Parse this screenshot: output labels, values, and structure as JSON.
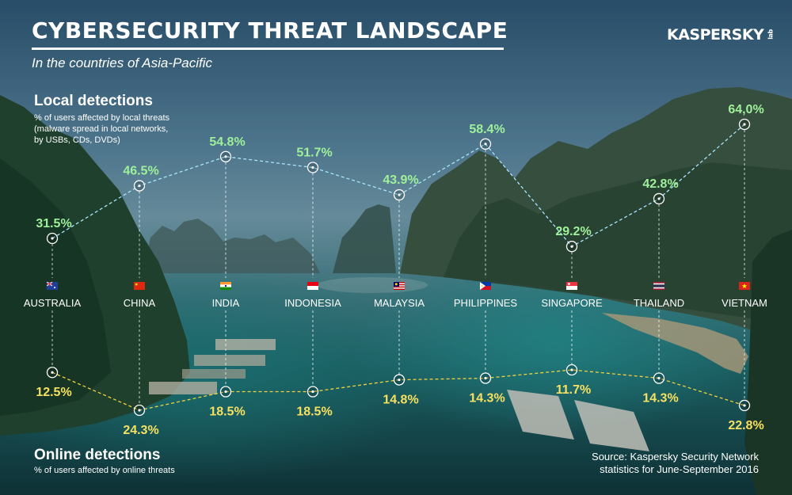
{
  "header": {
    "title": "CYBERSECURITY THREAT LANDSCAPE",
    "subtitle": "In the countries of Asia-Pacific",
    "logo_text": "KASPERSKY",
    "logo_suffix": "lab"
  },
  "local_section": {
    "heading": "Local detections",
    "note_lines": [
      "% of users affected by local threats",
      "(malware spread in local networks,",
      "by USBs, CDs, DVDs)"
    ]
  },
  "online_section": {
    "heading": "Online detections",
    "note": "% of users affected by online threats"
  },
  "source": {
    "line1": "Source: Kaspersky Security Network",
    "line2": "statistics for June-September 2016"
  },
  "colors": {
    "local": "#9ff09a",
    "online": "#f6e060",
    "local_line": "#a8e6ff",
    "online_line": "#f0d240"
  },
  "chart_data": {
    "type": "line",
    "categories": [
      "AUSTRALIA",
      "CHINA",
      "INDIA",
      "INDONESIA",
      "MALAYSIA",
      "PHILIPPINES",
      "SINGAPORE",
      "THAILAND",
      "VIETNAM"
    ],
    "series": [
      {
        "name": "Local detections",
        "values": [
          31.5,
          46.5,
          54.8,
          51.7,
          43.9,
          58.4,
          29.2,
          42.8,
          64.0
        ],
        "labels": [
          "31.5%",
          "46.5%",
          "54.8%",
          "51.7%",
          "43.9%",
          "58.4%",
          "29.2%",
          "42.8%",
          "64,0%"
        ]
      },
      {
        "name": "Online detections",
        "values": [
          12.5,
          24.3,
          18.5,
          18.5,
          14.8,
          14.3,
          11.7,
          14.3,
          22.8
        ],
        "labels": [
          "12.5%",
          "24.3%",
          "18.5%",
          "18.5%",
          "14.8%",
          "14.3%",
          "11.7%",
          "14.3%",
          "22.8%"
        ]
      }
    ],
    "flags": [
      "flag-australia-icon",
      "flag-china-icon",
      "flag-india-icon",
      "flag-indonesia-icon",
      "flag-malaysia-icon",
      "flag-philippines-icon",
      "flag-singapore-icon",
      "flag-thailand-icon",
      "flag-vietnam-icon"
    ]
  }
}
